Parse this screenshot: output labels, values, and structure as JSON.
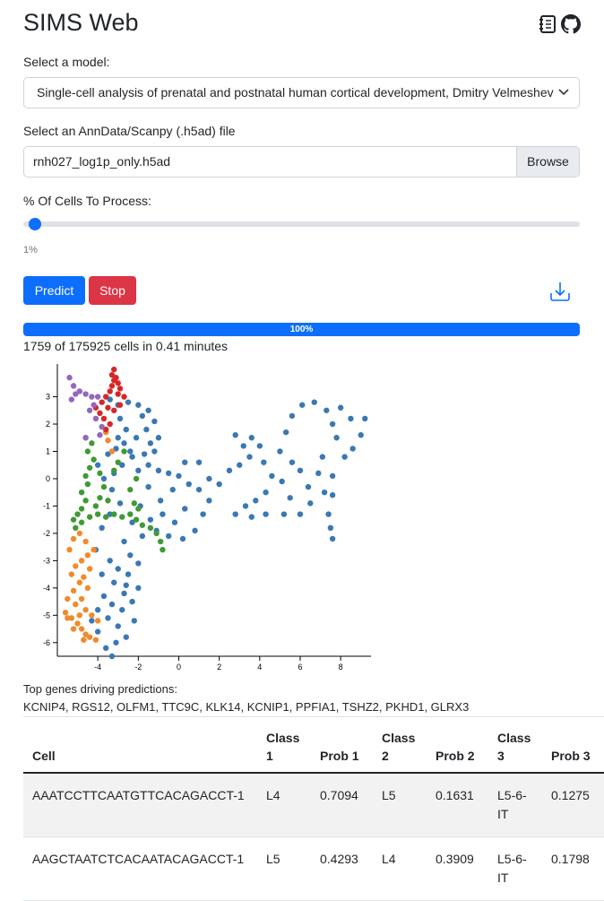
{
  "app": {
    "title": "SIMS Web"
  },
  "header_icons": [
    "notebook-icon",
    "github-icon"
  ],
  "model": {
    "label": "Select a model:",
    "selected": "Single-cell analysis of prenatal and postnatal human cortical development, Dmitry Velmeshev"
  },
  "file": {
    "label": "Select an AnnData/Scanpy (.h5ad) file",
    "value": "rnh027_log1p_only.h5ad",
    "browse_label": "Browse"
  },
  "cells": {
    "label": "% Of Cells To Process:",
    "value": 1,
    "value_label": "1%"
  },
  "actions": {
    "predict_label": "Predict",
    "stop_label": "Stop"
  },
  "progress": {
    "percent": 100,
    "label": "100%",
    "status": "1759 of 175925 cells in 0.41 minutes"
  },
  "colors": {
    "accent": "#0d6efd",
    "danger": "#dc3545",
    "c1": "#3a78b4",
    "c2": "#f08a2c",
    "c3": "#3f9a35",
    "c4": "#d62728",
    "c5": "#9467bd"
  },
  "chart_data": {
    "type": "scatter",
    "xlim": [
      -6,
      9.5
    ],
    "ylim": [
      -6.5,
      4.2
    ],
    "x_ticks": [
      -4,
      -2,
      0,
      2,
      4,
      6,
      8
    ],
    "y_ticks": [
      -6,
      -5,
      -4,
      -3,
      -2,
      -1,
      0,
      1,
      2,
      3
    ],
    "series": [
      {
        "color": "#3a78b4",
        "points": [
          [
            -3.4,
            2.9
          ],
          [
            -3.0,
            2.7
          ],
          [
            -2.5,
            2.8
          ],
          [
            -2.0,
            2.7
          ],
          [
            -1.5,
            2.5
          ],
          [
            -1.2,
            2.1
          ],
          [
            -1.0,
            1.5
          ],
          [
            -1.2,
            1.0
          ],
          [
            -1.7,
            0.9
          ],
          [
            -2.3,
            0.8
          ],
          [
            -2.8,
            0.5
          ],
          [
            -3.2,
            0.2
          ],
          [
            -3.0,
            1.5
          ],
          [
            -2.6,
            1.8
          ],
          [
            -2.1,
            1.5
          ],
          [
            -1.6,
            1.8
          ],
          [
            -2.4,
            1.0
          ],
          [
            -2.0,
            0.3
          ],
          [
            -1.5,
            0.5
          ],
          [
            -1.0,
            0.3
          ],
          [
            -0.5,
            0.2
          ],
          [
            0.0,
            0.1
          ],
          [
            0.5,
            -0.2
          ],
          [
            1.0,
            -0.4
          ],
          [
            1.5,
            -0.8
          ],
          [
            2.0,
            -0.2
          ],
          [
            2.5,
            0.3
          ],
          [
            3.0,
            0.5
          ],
          [
            3.5,
            0.8
          ],
          [
            3.2,
            1.2
          ],
          [
            2.8,
            1.6
          ],
          [
            3.6,
            1.5
          ],
          [
            4.0,
            1.2
          ],
          [
            4.2,
            0.6
          ],
          [
            4.6,
            0.1
          ],
          [
            4.3,
            -0.5
          ],
          [
            3.8,
            -0.8
          ],
          [
            3.3,
            -1.0
          ],
          [
            2.8,
            -1.3
          ],
          [
            3.6,
            -1.4
          ],
          [
            4.3,
            -1.3
          ],
          [
            5.2,
            -1.3
          ],
          [
            6.0,
            -1.3
          ],
          [
            5.5,
            -0.7
          ],
          [
            5.1,
            -0.1
          ],
          [
            5.6,
            0.6
          ],
          [
            6.0,
            0.3
          ],
          [
            6.4,
            -0.3
          ],
          [
            6.9,
            0.2
          ],
          [
            7.1,
            0.8
          ],
          [
            7.6,
            0.1
          ],
          [
            7.2,
            -0.5
          ],
          [
            6.5,
            -0.9
          ],
          [
            5.0,
            1.0
          ],
          [
            5.3,
            1.7
          ],
          [
            5.6,
            2.3
          ],
          [
            6.1,
            2.7
          ],
          [
            6.7,
            2.8
          ],
          [
            7.3,
            2.5
          ],
          [
            7.6,
            2.0
          ],
          [
            8.0,
            2.6
          ],
          [
            8.5,
            2.2
          ],
          [
            9.2,
            2.2
          ],
          [
            9.0,
            1.6
          ],
          [
            8.6,
            1.1
          ],
          [
            8.2,
            0.8
          ],
          [
            7.8,
            1.5
          ],
          [
            7.6,
            -0.6
          ],
          [
            7.4,
            -1.3
          ],
          [
            7.5,
            -1.8
          ],
          [
            7.6,
            -2.2
          ],
          [
            1.5,
            0.0
          ],
          [
            1.0,
            0.6
          ],
          [
            0.3,
            0.6
          ],
          [
            -0.3,
            -0.4
          ],
          [
            -0.9,
            -0.8
          ],
          [
            -1.5,
            -0.3
          ],
          [
            -1.9,
            -1.0
          ],
          [
            -1.4,
            -1.5
          ],
          [
            -0.8,
            -1.3
          ],
          [
            -0.2,
            -1.6
          ],
          [
            0.3,
            -1.1
          ],
          [
            1.2,
            -1.3
          ],
          [
            0.8,
            -1.9
          ],
          [
            0.2,
            -2.2
          ],
          [
            -0.5,
            -2.1
          ],
          [
            -1.1,
            -1.9
          ],
          [
            -1.8,
            -2.1
          ],
          [
            -2.3,
            -1.6
          ],
          [
            -2.7,
            -2.3
          ],
          [
            -2.4,
            -2.8
          ],
          [
            -2.0,
            -3.1
          ],
          [
            -2.5,
            -3.5
          ],
          [
            -3.0,
            -3.3
          ],
          [
            -3.4,
            -3.0
          ],
          [
            -3.2,
            -3.8
          ],
          [
            -2.7,
            -4.2
          ],
          [
            -2.3,
            -4.5
          ],
          [
            -2.8,
            -4.8
          ],
          [
            -3.3,
            -4.6
          ],
          [
            -3.7,
            -4.3
          ],
          [
            -3.5,
            -5.1
          ],
          [
            -3.0,
            -5.4
          ],
          [
            -2.6,
            -5.8
          ],
          [
            -3.1,
            -6.0
          ],
          [
            -3.6,
            -6.2
          ],
          [
            -3.3,
            -6.5
          ],
          [
            -4.0,
            -5.6
          ],
          [
            -4.3,
            -5.2
          ],
          [
            -4.0,
            -4.8
          ],
          [
            -2.2,
            -5.2
          ],
          [
            -2.0,
            -4.0
          ],
          [
            -2.6,
            -3.9
          ],
          [
            -3.8,
            -3.5
          ],
          [
            -4.1,
            -2.6
          ],
          [
            -3.8,
            -1.8
          ],
          [
            -3.4,
            -1.3
          ],
          [
            -2.9,
            -0.9
          ],
          [
            -3.3,
            -0.4
          ],
          [
            -3.7,
            0.0
          ],
          [
            -4.0,
            0.5
          ],
          [
            -3.5,
            0.9
          ],
          [
            -3.1,
            1.1
          ],
          [
            -2.7,
            1.3
          ],
          [
            -1.8,
            2.3
          ],
          [
            -1.4,
            1.3
          ],
          [
            -2.9,
            2.2
          ]
        ]
      },
      {
        "color": "#f08a2c",
        "points": [
          [
            -5.6,
            -4.9
          ],
          [
            -5.3,
            -5.1
          ],
          [
            -5.0,
            -5.3
          ],
          [
            -4.8,
            -5.5
          ],
          [
            -4.6,
            -5.7
          ],
          [
            -4.4,
            -5.8
          ],
          [
            -4.1,
            -5.9
          ],
          [
            -5.5,
            -4.4
          ],
          [
            -5.2,
            -4.1
          ],
          [
            -4.9,
            -3.8
          ],
          [
            -5.3,
            -3.5
          ],
          [
            -5.1,
            -3.2
          ],
          [
            -4.8,
            -3.0
          ],
          [
            -4.5,
            -2.8
          ],
          [
            -4.2,
            -2.6
          ],
          [
            -4.6,
            -2.3
          ],
          [
            -4.9,
            -2.0
          ],
          [
            -5.2,
            -2.2
          ],
          [
            -5.4,
            -2.6
          ],
          [
            -4.4,
            -3.3
          ],
          [
            -4.7,
            -3.6
          ],
          [
            -4.5,
            -4.0
          ],
          [
            -4.8,
            -4.4
          ],
          [
            -5.1,
            -4.6
          ],
          [
            -4.6,
            -4.8
          ],
          [
            -4.3,
            -5.0
          ],
          [
            -4.0,
            -5.2
          ],
          [
            -4.9,
            -5.0
          ],
          [
            -5.5,
            -5.1
          ],
          [
            -5.2,
            -5.5
          ],
          [
            -4.7,
            -5.9
          ],
          [
            -3.5,
            1.4
          ],
          [
            -3.3,
            1.0
          ],
          [
            -3.6,
            1.7
          ]
        ]
      },
      {
        "color": "#3f9a35",
        "points": [
          [
            -5.1,
            -1.8
          ],
          [
            -4.8,
            -1.6
          ],
          [
            -4.4,
            -1.4
          ],
          [
            -4.0,
            -1.3
          ],
          [
            -3.6,
            -1.4
          ],
          [
            -3.2,
            -1.3
          ],
          [
            -2.8,
            -1.4
          ],
          [
            -2.4,
            -1.3
          ],
          [
            -2.1,
            -1.5
          ],
          [
            -1.8,
            -1.7
          ],
          [
            -1.4,
            -1.8
          ],
          [
            -1.1,
            -2.0
          ],
          [
            -0.9,
            -2.3
          ],
          [
            -0.8,
            -2.6
          ],
          [
            -4.8,
            -1.1
          ],
          [
            -4.6,
            -0.8
          ],
          [
            -4.8,
            -0.5
          ],
          [
            -4.5,
            -0.2
          ],
          [
            -4.6,
            0.1
          ],
          [
            -4.4,
            0.4
          ],
          [
            -4.2,
            0.7
          ],
          [
            -4.5,
            1.0
          ],
          [
            -4.3,
            1.3
          ],
          [
            -4.6,
            1.5
          ],
          [
            -3.9,
            0.2
          ],
          [
            -3.7,
            -0.3
          ],
          [
            -3.9,
            -0.7
          ],
          [
            -4.1,
            -1.0
          ],
          [
            -3.5,
            -0.8
          ],
          [
            -3.2,
            0.3
          ],
          [
            -3.0,
            0.6
          ],
          [
            -2.4,
            -0.4
          ],
          [
            -2.2,
            -0.9
          ],
          [
            -2.1,
            0.0
          ],
          [
            -2.7,
            1.0
          ],
          [
            -2.0,
            -1.1
          ],
          [
            -5.0,
            -1.3
          ],
          [
            -5.2,
            -1.5
          ]
        ]
      },
      {
        "color": "#d62728",
        "points": [
          [
            -3.2,
            4.0
          ],
          [
            -3.1,
            3.7
          ],
          [
            -3.3,
            3.4
          ],
          [
            -3.0,
            3.1
          ],
          [
            -3.4,
            3.2
          ],
          [
            -3.6,
            3.0
          ],
          [
            -3.8,
            2.8
          ],
          [
            -3.5,
            2.6
          ],
          [
            -3.2,
            2.5
          ],
          [
            -2.9,
            2.7
          ],
          [
            -2.7,
            3.0
          ],
          [
            -2.9,
            3.3
          ],
          [
            -3.2,
            3.6
          ],
          [
            -3.7,
            2.2
          ],
          [
            -3.4,
            2.0
          ],
          [
            -3.6,
            1.8
          ],
          [
            -3.9,
            2.4
          ],
          [
            -4.1,
            2.6
          ],
          [
            -3.0,
            3.5
          ],
          [
            -3.3,
            3.8
          ]
        ]
      },
      {
        "color": "#9467bd",
        "points": [
          [
            -5.4,
            3.7
          ],
          [
            -5.2,
            3.4
          ],
          [
            -4.9,
            3.2
          ],
          [
            -4.6,
            3.1
          ],
          [
            -4.3,
            3.0
          ],
          [
            -4.0,
            3.0
          ],
          [
            -4.2,
            2.7
          ],
          [
            -4.4,
            2.5
          ],
          [
            -4.1,
            2.2
          ],
          [
            -3.8,
            1.9
          ],
          [
            -3.9,
            1.6
          ],
          [
            -4.6,
            1.5
          ],
          [
            -5.1,
            3.1
          ],
          [
            -5.3,
            2.9
          ]
        ]
      }
    ]
  },
  "top_genes": {
    "label": "Top genes driving predictions:",
    "list": "KCNIP4, RGS12, OLFM1, TTC9C, KLK14, KCNIP1, PPFIA1, TSHZ2, PKHD1, GLRX3"
  },
  "table": {
    "headers": [
      "Cell",
      "Class 1",
      "Prob 1",
      "Class 2",
      "Prob 2",
      "Class 3",
      "Prob 3"
    ],
    "rows": [
      [
        "AAATCCTTCAATGTTCACAGACCT-1",
        "L4",
        "0.7094",
        "L5",
        "0.1631",
        "L5-6-IT",
        "0.1275"
      ],
      [
        "AAGCTAATCTCACAATACAGACCT-1",
        "L5",
        "0.4293",
        "L4",
        "0.3909",
        "L5-6-IT",
        "0.1798"
      ]
    ]
  }
}
